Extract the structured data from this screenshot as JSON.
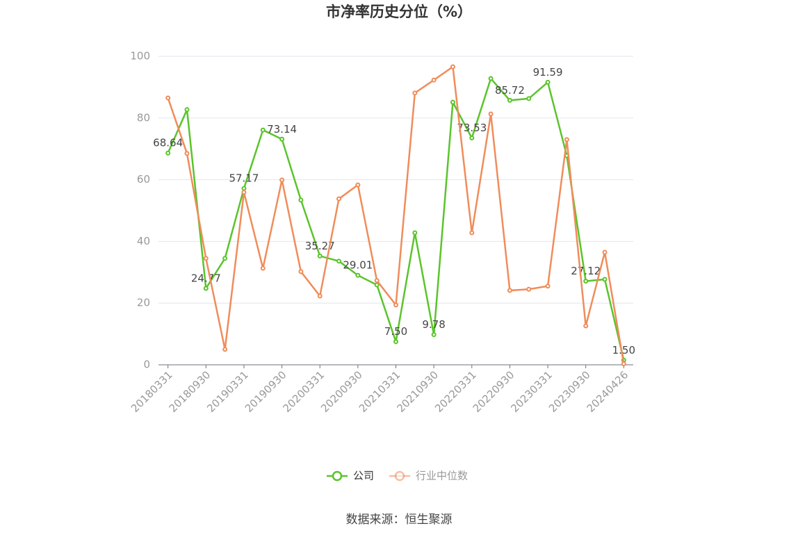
{
  "chart_data": {
    "type": "line",
    "title": "市净率历史分位（%）",
    "categories": [
      "20180331",
      null,
      "20180930",
      null,
      "20190331",
      null,
      "20190930",
      null,
      "20200331",
      null,
      "20200930",
      null,
      "20210331",
      null,
      "20210930",
      null,
      "20220331",
      null,
      "20220930",
      null,
      "20230331",
      null,
      "20230930",
      null,
      "20240426"
    ],
    "series": [
      {
        "name": "公司",
        "color": "#5ac42b",
        "values": [
          68.64,
          82.7,
          24.77,
          34.5,
          57.17,
          76.1,
          73.14,
          53.4,
          35.27,
          33.6,
          29.01,
          25.9,
          7.5,
          42.8,
          9.78,
          85.1,
          73.53,
          92.8,
          85.72,
          86.3,
          91.59,
          67.8,
          27.12,
          27.7,
          1.5
        ],
        "value_labels": [
          "68.64",
          null,
          "24.77",
          null,
          "57.17",
          null,
          "73.14",
          null,
          "35.27",
          null,
          "29.01",
          null,
          "7.50",
          null,
          "9.78",
          null,
          "73.53",
          null,
          "85.72",
          null,
          "91.59",
          null,
          "27.12",
          null,
          "1.50"
        ]
      },
      {
        "name": "行业中位数",
        "color": "#f08c5a",
        "values": [
          86.5,
          68.5,
          34.5,
          5.0,
          55.9,
          31.3,
          59.9,
          30.2,
          22.3,
          53.8,
          58.3,
          27.3,
          19.4,
          88.1,
          92.3,
          96.6,
          42.8,
          81.3,
          24.1,
          24.5,
          25.5,
          73.0,
          12.6,
          36.5,
          0.3
        ]
      }
    ],
    "ylim": [
      0,
      100
    ],
    "yticks": [
      0,
      20,
      40,
      60,
      80,
      100
    ],
    "grid": true,
    "legend": "bottom",
    "source": "数据来源：恒生聚源"
  }
}
